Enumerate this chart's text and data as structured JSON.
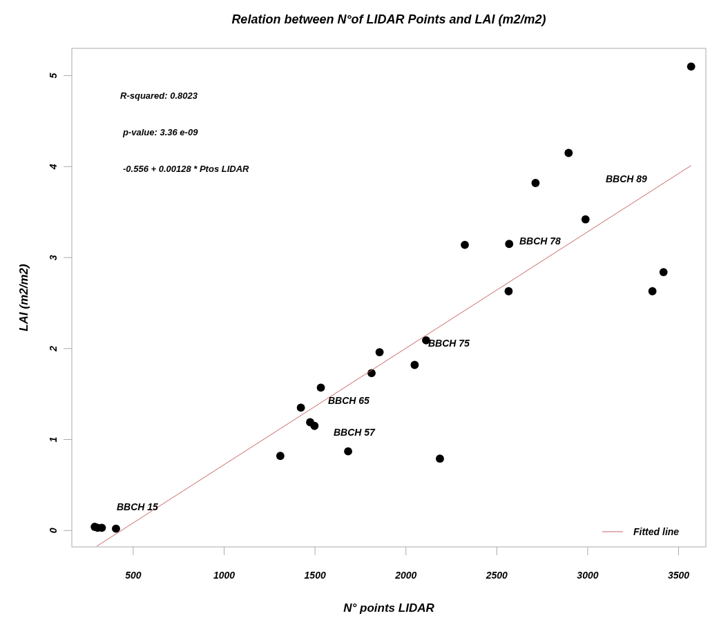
{
  "chart_data": {
    "type": "scatter",
    "title": "Relation between N°of LIDAR Points and LAI (m2/m2)",
    "xlabel": "N° points LIDAR",
    "ylabel": "LAI (m2/m2)",
    "xlim": [
      162,
      3650
    ],
    "xticks": [
      500,
      1000,
      1500,
      2000,
      2500,
      3000,
      3500
    ],
    "ylim": [
      -0.18,
      5.3
    ],
    "yticks": [
      0,
      1,
      2,
      3,
      4,
      5
    ],
    "grid": false,
    "legend": "bottom right",
    "series": [
      {
        "marker": "circle",
        "color": "#000000",
        "x": [
          288,
          304,
          327,
          405,
          1309,
          1422,
          1473,
          1497,
          1532,
          1682,
          1811,
          1855,
          2048,
          2111,
          2187,
          2324,
          2568,
          2565,
          2713,
          2895,
          2988,
          3356,
          3417,
          3569
        ],
        "values": [
          0.04,
          0.03,
          0.03,
          0.02,
          0.82,
          1.35,
          1.19,
          1.15,
          1.57,
          0.87,
          1.73,
          1.96,
          1.82,
          2.09,
          0.79,
          3.14,
          3.15,
          2.63,
          3.82,
          4.15,
          3.42,
          2.63,
          2.84,
          5.1
        ]
      },
      {
        "type": "line",
        "name": "Fitted line",
        "color": "#c86464",
        "x": [
          300,
          3569
        ],
        "values": [
          -0.172,
          4.012
        ]
      }
    ],
    "annotations": [
      "R-squared: 0.8023",
      "p-value: 3.36 e-09",
      "-0.556 + 0.00128 * Ptos LIDAR",
      "BBCH 15",
      "BBCH 65",
      "BBCH 57",
      "BBCH 75",
      "BBCH 78",
      "BBCH 89"
    ]
  }
}
